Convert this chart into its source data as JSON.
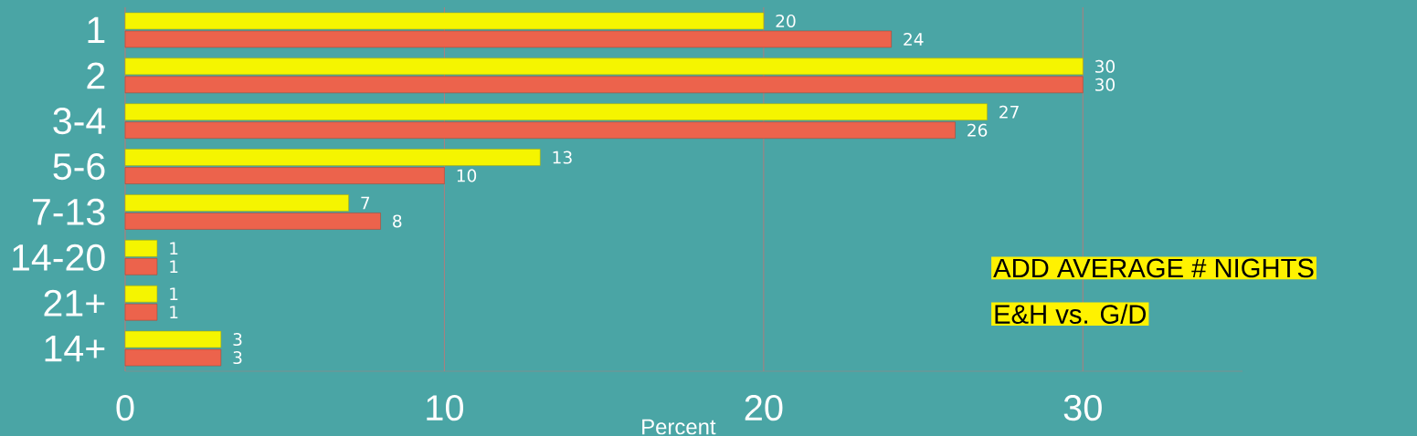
{
  "chart_data": {
    "type": "bar",
    "orientation": "horizontal",
    "xlabel": "Percent",
    "categories": [
      "1",
      "2",
      "3-4",
      "5-6",
      "7-13",
      "14-20",
      "21+",
      "14+"
    ],
    "series": [
      {
        "color": "#f5f500",
        "values": [
          20,
          30,
          27,
          13,
          7,
          1,
          1,
          3
        ]
      },
      {
        "color": "#ec634c",
        "values": [
          24,
          30,
          26,
          10,
          8,
          1,
          1,
          3
        ]
      }
    ],
    "xlim": [
      0,
      35
    ],
    "xticks": [
      0,
      10,
      20,
      30
    ],
    "grid": "x",
    "data_labels": true,
    "annotations": [
      "ADD AVERAGE # NIGHTS",
      "E&H vs. G/D"
    ]
  }
}
